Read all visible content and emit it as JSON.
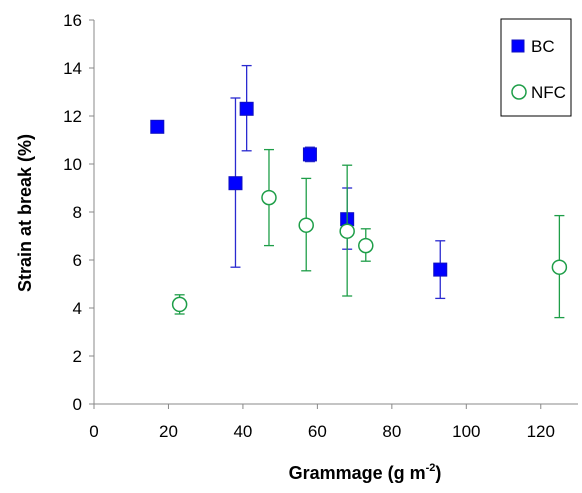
{
  "chart_data": {
    "type": "scatter",
    "xlabel": "Grammage (g m",
    "xlabel_sup": "-2",
    "xlabel_tail": ")",
    "ylabel": "Strain at break (%)",
    "xlim": [
      0,
      130
    ],
    "ylim": [
      0,
      16
    ],
    "xticks": [
      0,
      20,
      40,
      60,
      80,
      100,
      120
    ],
    "yticks": [
      0,
      2,
      4,
      6,
      8,
      10,
      12,
      14,
      16
    ],
    "grid": false,
    "legend_position": "top-right",
    "series": [
      {
        "name": "BC",
        "marker": "filled-square",
        "color": "#0000ff",
        "points": [
          {
            "x": 17,
            "y": 11.55,
            "err_low": 11.55,
            "err_high": 11.55
          },
          {
            "x": 38,
            "y": 9.2,
            "err_low": 5.7,
            "err_high": 12.75
          },
          {
            "x": 41,
            "y": 12.3,
            "err_low": 10.55,
            "err_high": 14.1
          },
          {
            "x": 58,
            "y": 10.4,
            "err_low": 10.1,
            "err_high": 10.7
          },
          {
            "x": 68,
            "y": 7.7,
            "err_low": 6.45,
            "err_high": 9.0
          },
          {
            "x": 93,
            "y": 5.6,
            "err_low": 4.4,
            "err_high": 6.8
          }
        ]
      },
      {
        "name": "NFC",
        "marker": "open-circle",
        "color": "#1e9e48",
        "points": [
          {
            "x": 23,
            "y": 4.15,
            "err_low": 3.75,
            "err_high": 4.55
          },
          {
            "x": 47,
            "y": 8.6,
            "err_low": 6.6,
            "err_high": 10.6
          },
          {
            "x": 57,
            "y": 7.45,
            "err_low": 5.55,
            "err_high": 9.4
          },
          {
            "x": 68,
            "y": 7.2,
            "err_low": 4.5,
            "err_high": 9.95
          },
          {
            "x": 73,
            "y": 6.6,
            "err_low": 5.95,
            "err_high": 7.3
          },
          {
            "x": 125,
            "y": 5.7,
            "err_low": 3.6,
            "err_high": 7.85
          }
        ]
      }
    ]
  }
}
